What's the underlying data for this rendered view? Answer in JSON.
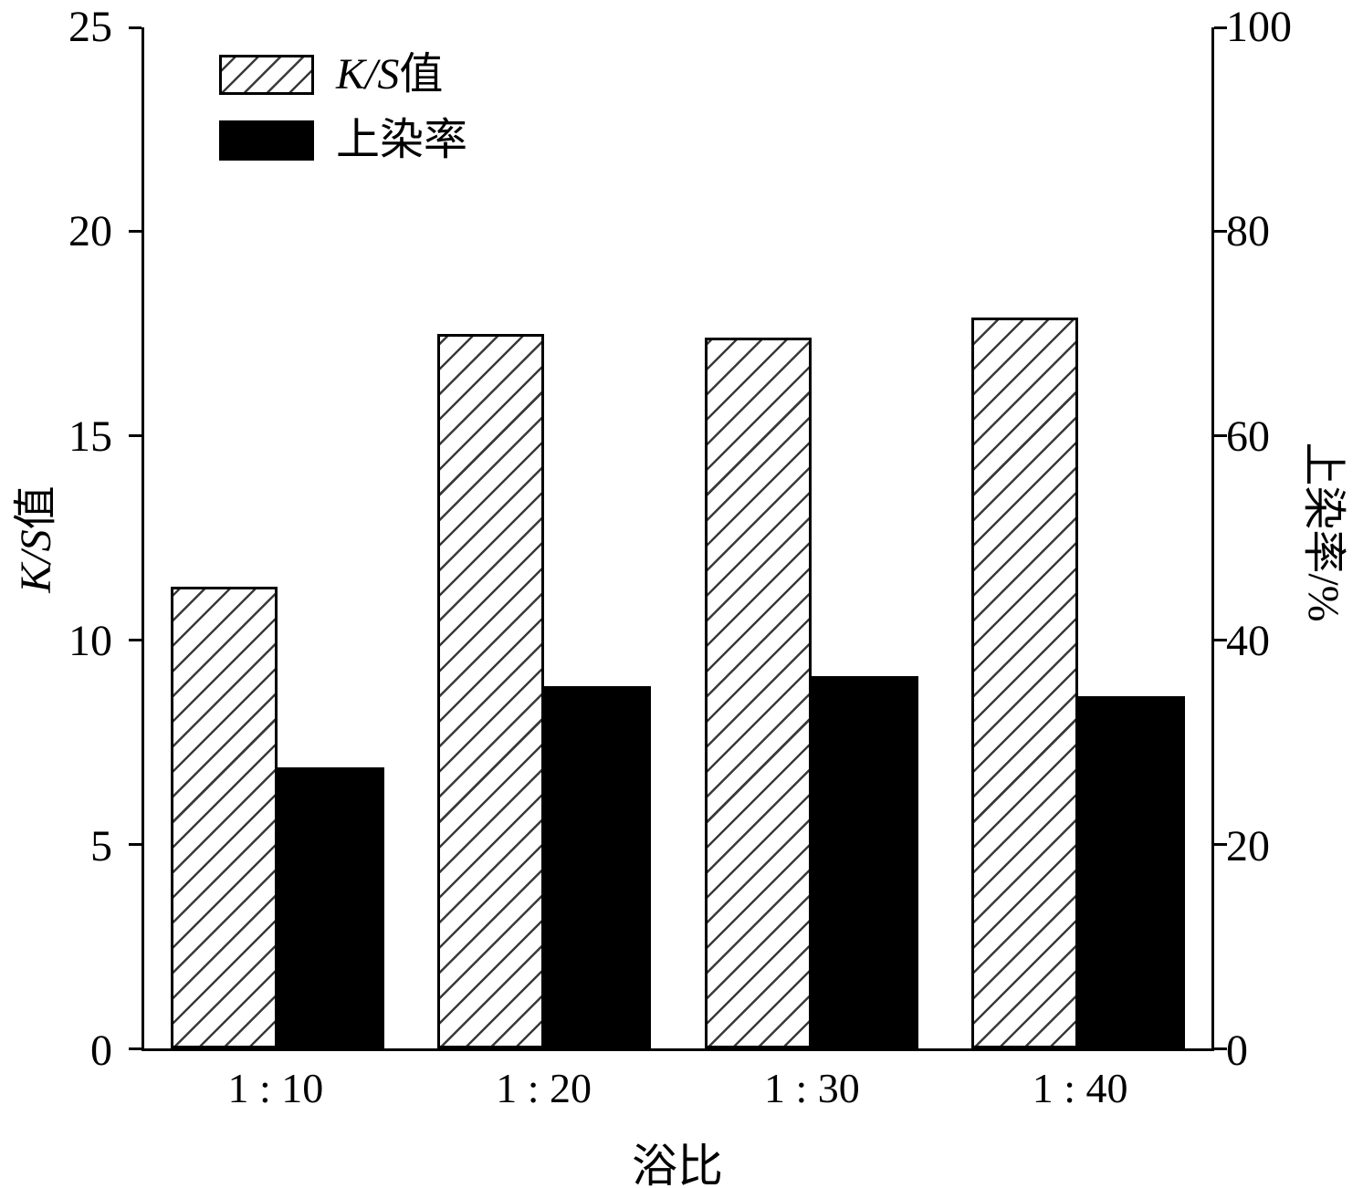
{
  "chart_data": {
    "type": "bar",
    "title": "",
    "xlabel": "浴比",
    "categories": [
      "1 : 10",
      "1 : 20",
      "1 : 30",
      "1 : 40"
    ],
    "series": [
      {
        "name": "K/S值",
        "axis": "left",
        "style": "hatched",
        "values": [
          11.3,
          17.5,
          17.4,
          17.9
        ]
      },
      {
        "name": "上染率",
        "axis": "right",
        "style": "solid",
        "values": [
          27.5,
          35.5,
          36.5,
          34.5
        ]
      }
    ],
    "left_axis": {
      "label_italic": "K/S",
      "label_suffix": "值",
      "min": 0,
      "max": 25,
      "ticks": [
        0,
        5,
        10,
        15,
        20,
        25
      ]
    },
    "right_axis": {
      "label": "上染率/%",
      "min": 0,
      "max": 100,
      "ticks": [
        0,
        20,
        40,
        60,
        80,
        100
      ]
    },
    "legend": {
      "position": "top-left-inside",
      "item1_italic": "K/S",
      "item1_suffix": "值",
      "item2": "上染率"
    },
    "layout": {
      "grid": false,
      "bar_border_color": "#000000",
      "solid_fill": "#000000",
      "hatch_color": "#3a3a3a",
      "background": "#ffffff"
    }
  }
}
